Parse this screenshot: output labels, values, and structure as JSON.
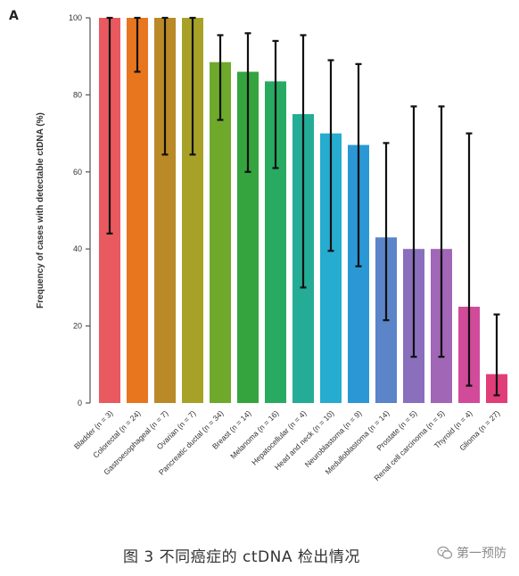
{
  "panel_letter": "A",
  "caption": "图 3 不同癌症的 ctDNA 检出情况",
  "watermark": "第一预防",
  "chart_data": {
    "type": "bar",
    "ylabel": "Frequency of cases with detectable ctDNA (%)",
    "xlabel": "",
    "ylim": [
      0,
      100
    ],
    "yticks": [
      0,
      20,
      40,
      60,
      80,
      100
    ],
    "grid": false,
    "categories": [
      "Bladder (n = 3)",
      "Colorectal (n = 24)",
      "Gastroesophageal (n = 7)",
      "Ovarian (n = 7)",
      "Pancreatic ductal (n = 34)",
      "Breast (n = 14)",
      "Melanoma (n = 16)",
      "Hepatocellular (n = 4)",
      "Head and neck (n = 10)",
      "Neuroblastoma (n = 9)",
      "Medulloblastoma (n = 14)",
      "Prostate (n = 5)",
      "Renal cell carcinoma (n = 5)",
      "Thyroid (n = 4)",
      "Glioma (n = 27)"
    ],
    "values": [
      100,
      100,
      100,
      100,
      88.5,
      86,
      83.5,
      75,
      70,
      67,
      43,
      40,
      40,
      25,
      7.5
    ],
    "error_low": [
      44,
      86,
      64.5,
      64.5,
      73.5,
      60,
      61,
      30,
      39.5,
      35.5,
      21.5,
      12,
      12,
      4.5,
      2
    ],
    "error_high": [
      100,
      100,
      100,
      100,
      95.5,
      96,
      94,
      95.5,
      89,
      88,
      67.5,
      77,
      77,
      70,
      23
    ],
    "colors": [
      "#e85a5f",
      "#e8761e",
      "#b98a27",
      "#a7a128",
      "#6fa92c",
      "#35a43e",
      "#28aa62",
      "#25ac96",
      "#26acd0",
      "#2b98d5",
      "#5b84c9",
      "#8a6fbd",
      "#a166b6",
      "#d14b9a",
      "#e03d79"
    ]
  }
}
